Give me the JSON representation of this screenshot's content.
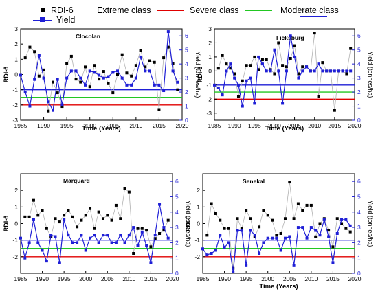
{
  "legend": {
    "rdi_label": "RDI-6",
    "extreme_label": "Extreme class",
    "severe_label": "Severe class",
    "moderate_label": "Moderate class",
    "yield_label": "Yield"
  },
  "colors": {
    "rdi": "#000000",
    "rdi_connector": "#b0b0b0",
    "yield": "#1f1fd6",
    "extreme": "#e00000",
    "severe": "#22c722",
    "moderate": "#1f1fd6",
    "axis_right": "#1f1fd6"
  },
  "chart_data": [
    {
      "type": "line",
      "title": "Clocolan",
      "xlabel": "Time (Years)",
      "ylabel": "RDI-6",
      "y2label": "Yield (tonnes/ha)",
      "xlim": [
        1985,
        2020
      ],
      "ylim": [
        -3,
        3
      ],
      "y2lim": [
        0,
        6.5
      ],
      "xticks": [
        1985,
        1990,
        1995,
        2000,
        2005,
        2010,
        2015,
        2020
      ],
      "yticks": [
        -3,
        -2,
        -1,
        0,
        1,
        2,
        3
      ],
      "y2ticks": [
        0,
        1,
        2,
        3,
        4,
        5,
        6
      ],
      "thresholds": {
        "extreme": -2.0,
        "severe": -1.5,
        "moderate": -1.0
      },
      "series": [
        {
          "name": "RDI-6",
          "x": [
            1986,
            1987,
            1988,
            1989,
            1990,
            1991,
            1992,
            1993,
            1994,
            1995,
            1996,
            1997,
            1998,
            1999,
            2000,
            2001,
            2002,
            2003,
            2004,
            2005,
            2006,
            2007,
            2008,
            2009,
            2010,
            2011,
            2012,
            2013,
            2014,
            2015,
            2016,
            2017,
            2018,
            2019
          ],
          "y": [
            1.1,
            1.8,
            1.5,
            -0.1,
            0.3,
            -2.4,
            -0.5,
            -1.2,
            -2.1,
            0.7,
            1.2,
            -0.3,
            -0.5,
            0.5,
            -0.8,
            0.6,
            -0.3,
            0.2,
            -0.6,
            -1.2,
            0.0,
            1.3,
            0.1,
            -0.1,
            0.6,
            1.6,
            0.5,
            0.9,
            0.8,
            -2.3,
            1.1,
            1.8,
            0.7,
            -1.0
          ]
        },
        {
          "name": "Yield",
          "x": [
            1985,
            1986,
            1987,
            1988,
            1989,
            1990,
            1991,
            1992,
            1993,
            1994,
            1995,
            1996,
            1997,
            1998,
            1999,
            2000,
            2001,
            2002,
            2003,
            2004,
            2005,
            2006,
            2007,
            2008,
            2009,
            2010,
            2011,
            2012,
            2013,
            2014,
            2015,
            2016,
            2017,
            2018,
            2019
          ],
          "y": [
            3.2,
            2.0,
            1.0,
            2.9,
            4.6,
            3.0,
            1.3,
            0.7,
            2.9,
            1.1,
            3.0,
            3.5,
            3.5,
            3.0,
            2.5,
            3.5,
            3.4,
            3.2,
            3.0,
            3.1,
            3.4,
            3.5,
            3.0,
            2.5,
            2.5,
            3.0,
            4.5,
            3.5,
            3.5,
            2.5,
            2.5,
            2.1,
            6.3,
            3.5,
            2.7
          ]
        }
      ]
    },
    {
      "type": "line",
      "title": "Ficksburg",
      "xlabel": "Time (Years)",
      "ylabel": "RDI-6",
      "y2label": "Yield (tonnes/ha)",
      "xlim": [
        1985,
        2020
      ],
      "ylim": [
        -3.5,
        3
      ],
      "y2lim": [
        0,
        6.5
      ],
      "xticks": [
        1985,
        1990,
        1995,
        2000,
        2005,
        2010,
        2015,
        2020
      ],
      "yticks": [
        -3,
        -2,
        -1,
        0,
        1,
        2,
        3
      ],
      "y2ticks": [
        0,
        1,
        2,
        3,
        4,
        5,
        6
      ],
      "thresholds": {
        "extreme": -2.0,
        "severe": -1.5,
        "moderate": -1.0
      },
      "series": [
        {
          "name": "RDI-6",
          "x": [
            1986,
            1987,
            1988,
            1989,
            1990,
            1991,
            1992,
            1993,
            1994,
            1995,
            1996,
            1997,
            1998,
            1999,
            2000,
            2001,
            2002,
            2003,
            2004,
            2005,
            2006,
            2007,
            2008,
            2009,
            2010,
            2011,
            2012,
            2013,
            2014,
            2015,
            2016,
            2017,
            2018,
            2019
          ],
          "y": [
            0.2,
            1.1,
            0.5,
            0.2,
            -0.2,
            -1.8,
            -0.7,
            0.4,
            0.4,
            1.0,
            0.1,
            0.8,
            0.8,
            0.1,
            -0.2,
            2.0,
            0.4,
            0.3,
            0.9,
            1.8,
            -0.2,
            0.3,
            0.3,
            0.0,
            2.7,
            -1.8,
            0.6,
            0.0,
            0.0,
            -2.8,
            0.0,
            0.0,
            -0.2,
            1.6
          ]
        },
        {
          "name": "Yield",
          "x": [
            1985,
            1986,
            1987,
            1988,
            1989,
            1990,
            1991,
            1992,
            1993,
            1994,
            1995,
            1996,
            1997,
            1998,
            1999,
            2000,
            2001,
            2002,
            2003,
            2004,
            2005,
            2006,
            2007,
            2008,
            2009,
            2010,
            2011,
            2012,
            2013,
            2014,
            2015,
            2016,
            2017,
            2018,
            2019
          ],
          "y": [
            2.5,
            2.3,
            1.8,
            3.5,
            4.0,
            3.0,
            2.5,
            1.0,
            2.8,
            3.0,
            1.2,
            4.5,
            4.0,
            3.5,
            3.5,
            5.0,
            3.5,
            1.2,
            3.5,
            6.0,
            4.5,
            3.0,
            3.5,
            3.8,
            3.5,
            3.5,
            4.0,
            3.5,
            3.5,
            3.5,
            3.5,
            3.5,
            3.5,
            3.5,
            3.5
          ]
        }
      ]
    },
    {
      "type": "line",
      "title": "Marquard",
      "xlabel": "",
      "ylabel": "RDI-6",
      "y2label": "Yield (tonnes/ha)",
      "xlim": [
        1985,
        2020
      ],
      "ylim": [
        -3,
        3
      ],
      "y2lim": [
        0,
        6.5
      ],
      "xticks": [
        1985,
        1990,
        1995,
        2000,
        2005,
        2010,
        2015,
        2020
      ],
      "yticks": [
        -2,
        -1,
        0,
        1,
        2
      ],
      "y2ticks": [
        0,
        1,
        2,
        3,
        4,
        5,
        6
      ],
      "thresholds": {
        "extreme": -2.0,
        "severe": -1.5,
        "moderate": -1.0
      },
      "series": [
        {
          "name": "RDI-6",
          "x": [
            1986,
            1987,
            1988,
            1989,
            1990,
            1991,
            1992,
            1993,
            1994,
            1995,
            1996,
            1997,
            1998,
            1999,
            2000,
            2001,
            2002,
            2003,
            2004,
            2005,
            2006,
            2007,
            2008,
            2009,
            2010,
            2011,
            2012,
            2013,
            2014,
            2015,
            2016,
            2017,
            2018,
            2019
          ],
          "y": [
            0.4,
            0.4,
            1.4,
            0.5,
            0.8,
            -0.3,
            -0.8,
            0.3,
            0.1,
            0.5,
            0.8,
            0.4,
            -0.2,
            0.2,
            0.5,
            0.9,
            -0.3,
            0.7,
            0.3,
            0.5,
            0.2,
            1.1,
            0.3,
            2.1,
            1.9,
            -1.8,
            -0.3,
            -0.3,
            -0.4,
            -1.4,
            -0.9,
            -0.6,
            -0.4,
            0.2
          ]
        },
        {
          "name": "Yield",
          "x": [
            1985,
            1986,
            1987,
            1988,
            1989,
            1990,
            1991,
            1992,
            1993,
            1994,
            1995,
            1996,
            1997,
            1998,
            1999,
            2000,
            2001,
            2002,
            2003,
            2004,
            2005,
            2006,
            2007,
            2008,
            2009,
            2010,
            2011,
            2012,
            2013,
            2014,
            2015,
            2016,
            2017,
            2018,
            2019
          ],
          "y": [
            2.3,
            1.0,
            2.0,
            3.5,
            2.0,
            1.5,
            0.8,
            2.5,
            2.4,
            0.7,
            3.5,
            2.5,
            2.0,
            2.0,
            2.5,
            1.5,
            2.3,
            2.5,
            2.0,
            2.5,
            2.5,
            2.0,
            2.0,
            2.5,
            2.0,
            2.5,
            3.0,
            1.8,
            2.7,
            1.8,
            0.7,
            2.5,
            4.5,
            3.0,
            2.3
          ]
        }
      ]
    },
    {
      "type": "line",
      "title": "Senekal",
      "xlabel": "Time (Years)",
      "ylabel": "RDI-6",
      "y2label": "Yield (tonnes/ha)",
      "xlim": [
        1985,
        2020
      ],
      "ylim": [
        -3,
        3
      ],
      "y2lim": [
        0,
        6.5
      ],
      "xticks": [
        1985,
        1990,
        1995,
        2000,
        2005,
        2010,
        2015,
        2020
      ],
      "yticks": [
        -2,
        -1,
        0,
        1,
        2
      ],
      "y2ticks": [
        0,
        1,
        2,
        3,
        4,
        5,
        6
      ],
      "thresholds": {
        "extreme": -2.0,
        "severe": -1.5,
        "moderate": -1.0
      },
      "series": [
        {
          "name": "RDI-6",
          "x": [
            1986,
            1987,
            1988,
            1989,
            1990,
            1991,
            1992,
            1993,
            1994,
            1995,
            1996,
            1997,
            1998,
            1999,
            2000,
            2001,
            2002,
            2003,
            2004,
            2005,
            2006,
            2007,
            2008,
            2009,
            2010,
            2011,
            2012,
            2013,
            2014,
            2015,
            2016,
            2017,
            2018,
            2019
          ],
          "y": [
            -0.7,
            1.2,
            0.6,
            0.2,
            -0.3,
            -0.3,
            -2.7,
            0.3,
            -0.3,
            0.8,
            0.3,
            -0.8,
            -0.2,
            0.8,
            0.5,
            0.2,
            -0.7,
            -0.6,
            0.3,
            2.5,
            0.3,
            1.2,
            0.8,
            1.1,
            1.1,
            -0.8,
            0.0,
            0.3,
            -0.4,
            -1.4,
            0.3,
            0.0,
            -0.3,
            -0.5
          ]
        },
        {
          "name": "Yield",
          "x": [
            1985,
            1986,
            1987,
            1988,
            1989,
            1990,
            1991,
            1992,
            1993,
            1994,
            1995,
            1996,
            1997,
            1998,
            1999,
            2000,
            2001,
            2002,
            2003,
            2004,
            2005,
            2006,
            2007,
            2008,
            2009,
            2010,
            2011,
            2012,
            2013,
            2014,
            2015,
            2016,
            2017,
            2018,
            2019
          ],
          "y": [
            1.6,
            1.2,
            1.3,
            1.5,
            2.5,
            1.7,
            2.0,
            0.1,
            2.8,
            2.8,
            0.5,
            2.8,
            2.5,
            1.3,
            2.0,
            2.3,
            2.3,
            2.3,
            1.5,
            2.3,
            2.4,
            0.5,
            3.0,
            3.0,
            2.3,
            3.0,
            2.8,
            2.5,
            3.5,
            2.4,
            0.7,
            2.6,
            3.5,
            3.5,
            3.1
          ]
        }
      ]
    }
  ]
}
